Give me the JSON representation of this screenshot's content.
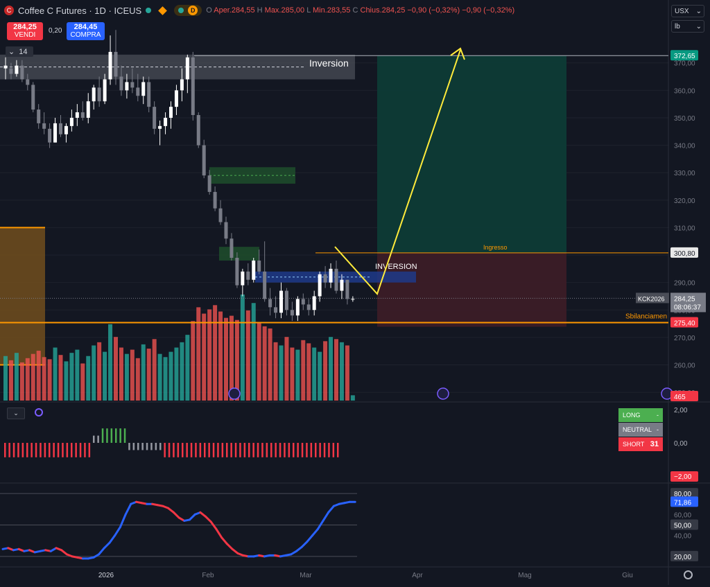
{
  "header": {
    "logo_letter": "C",
    "title": "Coffee C Futures · 1D · ICEUS",
    "badge_letter": "D",
    "ohlc": {
      "open_label": "O",
      "open_text": "Aper.284,55",
      "high_label": "H",
      "high_text": "Max.285,00",
      "low_label": "L",
      "low_text": "Min.283,55",
      "close_label": "C",
      "close_text": "Chius.284,25",
      "change_text": "−0,90 (−0,32%)",
      "change2_text": "−0,90 (−0,32%)"
    }
  },
  "trade": {
    "sell_price": "284,25",
    "sell_label": "VENDI",
    "spread": "0,20",
    "buy_price": "284,45",
    "buy_label": "COMPRA"
  },
  "collapse": {
    "count": "14"
  },
  "toolbar": {
    "currency": "USX",
    "unit": "lb"
  },
  "annotations": {
    "inversion_top": "Inversion",
    "inversion_mid": "INVERSION",
    "entry": "Ingresso",
    "imbalance": "Sbilanciamen"
  },
  "price_axis": {
    "ticks": [
      "370,00",
      "360,00",
      "350,00",
      "340,00",
      "330,00",
      "320,00",
      "310,00",
      "290,00",
      "280,00",
      "270,00",
      "260,00",
      "250,00"
    ],
    "target_label": "372,65",
    "entry_label": "300,80",
    "symbol": "KCK2026",
    "last_price": "284,25",
    "countdown": "08:06:37",
    "stop_label": "275,40",
    "volume_label": "465"
  },
  "indicator1": {
    "axis": [
      "2,00",
      "0,00",
      "−2,00"
    ],
    "legend": [
      {
        "label": "LONG",
        "value": "-",
        "color": "#4caf50"
      },
      {
        "label": "NEUTRAL",
        "value": "-",
        "color": "#787b86"
      },
      {
        "label": "SHORT",
        "value": "31",
        "color": "#f23645"
      }
    ]
  },
  "indicator2": {
    "axis": [
      "80,00",
      "60,00",
      "50,00",
      "40,00",
      "20,00"
    ],
    "current": "71,86"
  },
  "time_axis": [
    "2026",
    "Feb",
    "Mar",
    "Apr",
    "Mag",
    "Giu"
  ],
  "colors": {
    "background": "#131722",
    "up": "#26a69a",
    "down": "#ef5350",
    "candle_up": "#ffffff",
    "candle_down": "#787b86",
    "target_zone": "#0d3b36",
    "stop_zone": "#3b1c27",
    "arrow": "#ffeb3b",
    "level": "#ff9800",
    "osc_up": "#2962ff",
    "osc_down": "#f23645"
  },
  "chart_data": [
    {
      "type": "candlestick",
      "title": "Coffee C Futures · 1D · ICEUS",
      "ylim": [
        247,
        377
      ],
      "last": 284.25,
      "levels": {
        "target": 372.65,
        "entry": 300.8,
        "stop": 275.4
      },
      "zones": {
        "inversion_top": [
          364,
          373
        ],
        "green_fvg_upper": [
          326,
          332
        ],
        "green_fvg_lower": [
          298,
          303
        ],
        "inversion_mid": [
          290,
          294
        ],
        "orange_block_top": 310,
        "orange_block_bottom": 260
      },
      "candles": [
        [
          368,
          372,
          364,
          369
        ],
        [
          368,
          370,
          364,
          366
        ],
        [
          366,
          371,
          365,
          369
        ],
        [
          369,
          371,
          363,
          364
        ],
        [
          364,
          366,
          360,
          362
        ],
        [
          362,
          363,
          352,
          353
        ],
        [
          353,
          355,
          346,
          348
        ],
        [
          348,
          352,
          344,
          346
        ],
        [
          346,
          348,
          339,
          341
        ],
        [
          341,
          350,
          341,
          348
        ],
        [
          348,
          351,
          343,
          344
        ],
        [
          344,
          348,
          341,
          347
        ],
        [
          347,
          353,
          345,
          350
        ],
        [
          350,
          355,
          347,
          352
        ],
        [
          352,
          356,
          349,
          350
        ],
        [
          350,
          359,
          348,
          356
        ],
        [
          356,
          362,
          353,
          361
        ],
        [
          361,
          365,
          354,
          356
        ],
        [
          356,
          366,
          355,
          364
        ],
        [
          364,
          380,
          362,
          374
        ],
        [
          374,
          382,
          362,
          365
        ],
        [
          365,
          369,
          358,
          360
        ],
        [
          360,
          366,
          357,
          363
        ],
        [
          363,
          368,
          359,
          361
        ],
        [
          361,
          366,
          356,
          358
        ],
        [
          358,
          365,
          355,
          363
        ],
        [
          363,
          365,
          352,
          354
        ],
        [
          354,
          356,
          344,
          346
        ],
        [
          346,
          349,
          340,
          347
        ],
        [
          347,
          352,
          344,
          350
        ],
        [
          350,
          356,
          346,
          354
        ],
        [
          354,
          362,
          351,
          360
        ],
        [
          360,
          368,
          356,
          364
        ],
        [
          364,
          373,
          359,
          372
        ],
        [
          372,
          374,
          349,
          351
        ],
        [
          351,
          352,
          339,
          340
        ],
        [
          340,
          342,
          328,
          329
        ],
        [
          329,
          331,
          322,
          323
        ],
        [
          323,
          325,
          316,
          317
        ],
        [
          317,
          320,
          311,
          312
        ],
        [
          312,
          314,
          304,
          306
        ],
        [
          306,
          308,
          298,
          299
        ],
        [
          299,
          301,
          288,
          289
        ],
        [
          289,
          295,
          285,
          294
        ],
        [
          294,
          297,
          289,
          291
        ],
        [
          291,
          299,
          290,
          298
        ],
        [
          298,
          302,
          293,
          294
        ],
        [
          294,
          305,
          283,
          284
        ],
        [
          284,
          288,
          278,
          281
        ],
        [
          281,
          285,
          277,
          279
        ],
        [
          279,
          290,
          277,
          287
        ],
        [
          287,
          288,
          278,
          280
        ],
        [
          280,
          283,
          276,
          278
        ],
        [
          278,
          285,
          276,
          284
        ],
        [
          284,
          286,
          280,
          282
        ],
        [
          282,
          284,
          278,
          280
        ],
        [
          280,
          287,
          278,
          285
        ],
        [
          285,
          294,
          283,
          293
        ],
        [
          293,
          296,
          288,
          290
        ],
        [
          290,
          297,
          288,
          295
        ],
        [
          295,
          298,
          286,
          287
        ],
        [
          287,
          293,
          284,
          291
        ],
        [
          291,
          291,
          282,
          284
        ],
        [
          284,
          285,
          283,
          284
        ]
      ],
      "volumes": [
        0.42,
        0.38,
        0.45,
        0.36,
        0.4,
        0.44,
        0.47,
        0.41,
        0.39,
        0.5,
        0.43,
        0.37,
        0.45,
        0.48,
        0.35,
        0.42,
        0.52,
        0.55,
        0.46,
        0.72,
        0.6,
        0.5,
        0.44,
        0.48,
        0.4,
        0.53,
        0.49,
        0.58,
        0.44,
        0.41,
        0.46,
        0.5,
        0.55,
        0.62,
        0.75,
        0.88,
        0.82,
        0.86,
        0.9,
        0.84,
        0.78,
        0.8,
        0.76,
        1.0,
        0.85,
        0.92,
        0.74,
        0.7,
        0.68,
        0.55,
        0.52,
        0.6,
        0.5,
        0.48,
        0.57,
        0.54,
        0.5,
        0.46,
        0.56,
        0.6,
        0.58,
        0.55,
        0.52,
        0.05
      ]
    },
    {
      "type": "bar",
      "title": "",
      "ylim": [
        -2.4,
        2.4
      ],
      "values": [
        -1,
        -1,
        -1,
        -1,
        -1,
        -1,
        -1,
        -1,
        -1,
        -1,
        -1,
        -1,
        -1,
        -1,
        -1,
        -1,
        -1,
        -1,
        -1,
        -1,
        0.5,
        0.5,
        1,
        1,
        1,
        1,
        1,
        1,
        -0.5,
        -0.5,
        -0.5,
        -0.5,
        -0.5,
        -0.5,
        -0.5,
        -0.5,
        -1,
        -1,
        -1,
        -1,
        -1,
        -1,
        -1,
        -1,
        -1,
        -1,
        -1,
        -1,
        -1,
        -1,
        -1,
        -1,
        -1,
        -1,
        -1,
        -1,
        -1,
        -1,
        -1,
        -1,
        -1,
        -1,
        -1,
        -1,
        -1,
        -1,
        -1,
        -1,
        -1,
        -1,
        -1,
        -1,
        -1,
        -1,
        -1,
        -1
      ]
    },
    {
      "type": "line",
      "title": "",
      "ylim": [
        12,
        88
      ],
      "bands": [
        80,
        50,
        20
      ],
      "values": [
        27,
        28,
        26,
        27,
        25,
        26,
        24,
        25,
        26,
        25,
        28,
        26,
        22,
        20,
        19,
        18,
        18,
        19,
        22,
        28,
        33,
        40,
        48,
        60,
        70,
        72,
        71,
        70,
        70,
        69,
        68,
        66,
        62,
        57,
        54,
        55,
        60,
        62,
        58,
        53,
        46,
        38,
        32,
        27,
        23,
        21,
        20,
        20,
        21,
        20,
        21,
        21,
        20,
        21,
        22,
        25,
        29,
        34,
        40,
        46,
        54,
        62,
        68,
        70,
        71,
        72,
        72
      ]
    }
  ]
}
